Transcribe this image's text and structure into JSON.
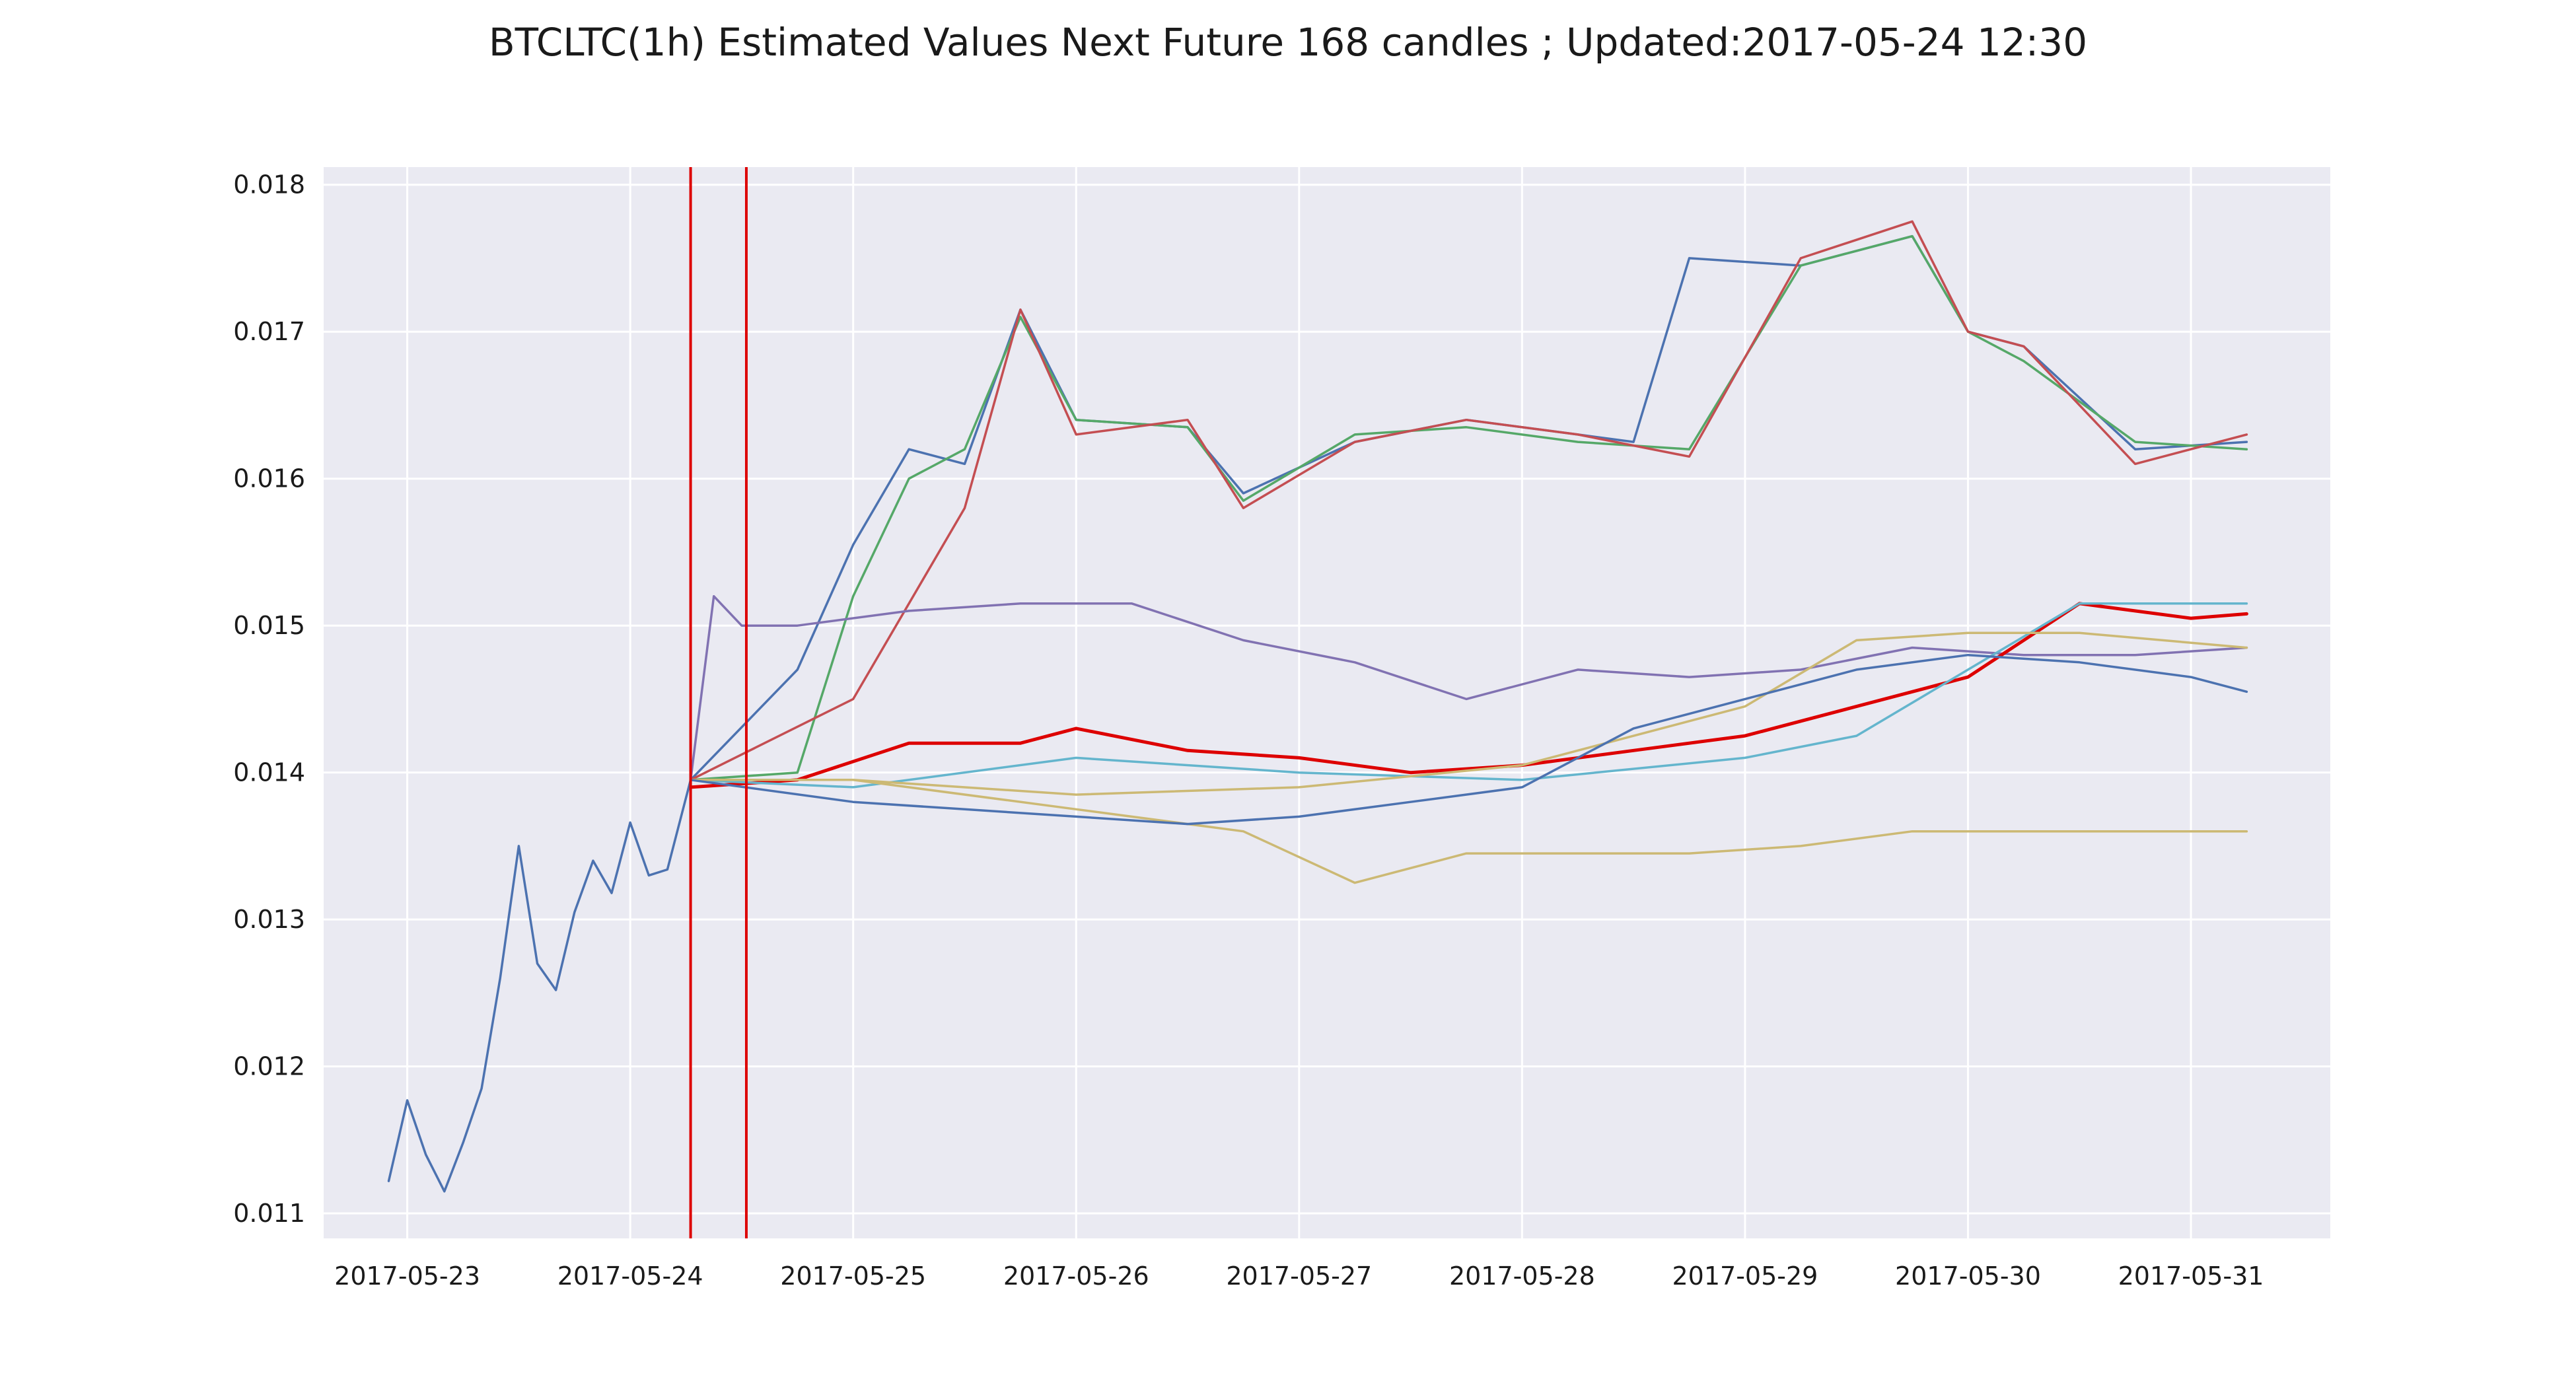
{
  "chart_data": {
    "type": "line",
    "title": "BTCLTC(1h) Estimated Values Next Future 168 candles ; Updated:2017-05-24 12:30",
    "xlabel": "",
    "ylabel": "",
    "x_unit": "date",
    "xlim": [
      "2017-05-22 15:00",
      "2017-05-31 15:00"
    ],
    "ylim": [
      0.01083,
      0.01812
    ],
    "x_ticks": [
      "2017-05-23",
      "2017-05-24",
      "2017-05-25",
      "2017-05-26",
      "2017-05-27",
      "2017-05-28",
      "2017-05-29",
      "2017-05-30",
      "2017-05-31"
    ],
    "y_ticks": [
      0.011,
      0.012,
      0.013,
      0.014,
      0.015,
      0.016,
      0.017,
      0.018
    ],
    "grid": true,
    "background": "#eaeaf2",
    "vertical_lines": [
      {
        "x": "2017-05-24 06:30",
        "color": "#dd0000"
      },
      {
        "x": "2017-05-24 12:30",
        "color": "#dd0000"
      }
    ],
    "history": {
      "color": "#4c72b0",
      "x": [
        "2017-05-22 22:00",
        "2017-05-23 00:00",
        "2017-05-23 02:00",
        "2017-05-23 04:00",
        "2017-05-23 06:00",
        "2017-05-23 08:00",
        "2017-05-23 10:00",
        "2017-05-23 12:00",
        "2017-05-23 14:00",
        "2017-05-23 16:00",
        "2017-05-23 18:00",
        "2017-05-23 20:00",
        "2017-05-23 22:00",
        "2017-05-24 00:00",
        "2017-05-24 02:00",
        "2017-05-24 04:00",
        "2017-05-24 06:30"
      ],
      "y": [
        0.01122,
        0.01177,
        0.0114,
        0.01115,
        0.01148,
        0.01185,
        0.0126,
        0.0135,
        0.0127,
        0.01252,
        0.01305,
        0.0134,
        0.01318,
        0.01366,
        0.0133,
        0.01334,
        0.01395
      ]
    },
    "series": [
      {
        "color": "#4c72b0",
        "x": [
          "2017-05-24 06:30",
          "2017-05-24 18:00",
          "2017-05-25 00:00",
          "2017-05-25 06:00",
          "2017-05-25 12:00",
          "2017-05-25 18:00",
          "2017-05-26 00:00",
          "2017-05-26 12:00",
          "2017-05-26 18:00",
          "2017-05-27 06:00",
          "2017-05-27 18:00",
          "2017-05-28 06:00",
          "2017-05-28 12:00",
          "2017-05-28 18:00",
          "2017-05-29 06:00",
          "2017-05-29 18:00",
          "2017-05-30 00:00",
          "2017-05-30 06:00",
          "2017-05-30 18:00",
          "2017-05-31 06:00"
        ],
        "y": [
          0.01395,
          0.0147,
          0.01555,
          0.0162,
          0.0161,
          0.01715,
          0.0164,
          0.01635,
          0.0159,
          0.01625,
          0.0164,
          0.0163,
          0.01625,
          0.0175,
          0.01745,
          0.01765,
          0.017,
          0.0169,
          0.0162,
          0.01625
        ]
      },
      {
        "color": "#55a868",
        "x": [
          "2017-05-24 06:30",
          "2017-05-24 18:00",
          "2017-05-25 00:00",
          "2017-05-25 06:00",
          "2017-05-25 12:00",
          "2017-05-25 18:00",
          "2017-05-26 00:00",
          "2017-05-26 12:00",
          "2017-05-26 18:00",
          "2017-05-27 06:00",
          "2017-05-27 18:00",
          "2017-05-28 06:00",
          "2017-05-28 18:00",
          "2017-05-29 06:00",
          "2017-05-29 18:00",
          "2017-05-30 00:00",
          "2017-05-30 06:00",
          "2017-05-30 18:00",
          "2017-05-31 06:00"
        ],
        "y": [
          0.01395,
          0.014,
          0.0152,
          0.016,
          0.0162,
          0.0171,
          0.0164,
          0.01635,
          0.01585,
          0.0163,
          0.01635,
          0.01625,
          0.0162,
          0.01745,
          0.01765,
          0.017,
          0.0168,
          0.01625,
          0.0162
        ]
      },
      {
        "color": "#c44e52",
        "x": [
          "2017-05-24 06:30",
          "2017-05-25 00:00",
          "2017-05-25 12:00",
          "2017-05-25 18:00",
          "2017-05-26 00:00",
          "2017-05-26 12:00",
          "2017-05-26 18:00",
          "2017-05-27 06:00",
          "2017-05-27 18:00",
          "2017-05-28 06:00",
          "2017-05-28 18:00",
          "2017-05-29 06:00",
          "2017-05-29 18:00",
          "2017-05-30 00:00",
          "2017-05-30 06:00",
          "2017-05-30 18:00",
          "2017-05-31 06:00"
        ],
        "y": [
          0.01395,
          0.0145,
          0.0158,
          0.01715,
          0.0163,
          0.0164,
          0.0158,
          0.01625,
          0.0164,
          0.0163,
          0.01615,
          0.0175,
          0.01775,
          0.017,
          0.0169,
          0.0161,
          0.0163
        ]
      },
      {
        "color": "#8172b2",
        "x": [
          "2017-05-24 06:30",
          "2017-05-24 09:00",
          "2017-05-24 12:00",
          "2017-05-24 18:00",
          "2017-05-25 06:00",
          "2017-05-25 18:00",
          "2017-05-26 06:00",
          "2017-05-26 18:00",
          "2017-05-27 06:00",
          "2017-05-27 18:00",
          "2017-05-28 06:00",
          "2017-05-28 18:00",
          "2017-05-29 06:00",
          "2017-05-29 18:00",
          "2017-05-30 06:00",
          "2017-05-30 18:00",
          "2017-05-31 06:00"
        ],
        "y": [
          0.01395,
          0.0152,
          0.015,
          0.015,
          0.0151,
          0.01515,
          0.01515,
          0.0149,
          0.01475,
          0.0145,
          0.0147,
          0.01465,
          0.0147,
          0.01485,
          0.0148,
          0.0148,
          0.01485
        ]
      },
      {
        "color": "#dd0000",
        "x": [
          "2017-05-24 06:30",
          "2017-05-24 18:00",
          "2017-05-25 06:00",
          "2017-05-25 18:00",
          "2017-05-26 00:00",
          "2017-05-26 12:00",
          "2017-05-27 00:00",
          "2017-05-27 12:00",
          "2017-05-28 00:00",
          "2017-05-28 12:00",
          "2017-05-29 00:00",
          "2017-05-29 12:00",
          "2017-05-30 00:00",
          "2017-05-30 12:00",
          "2017-05-31 00:00",
          "2017-05-31 06:00"
        ],
        "y": [
          0.0139,
          0.01395,
          0.0142,
          0.0142,
          0.0143,
          0.01415,
          0.0141,
          0.014,
          0.01405,
          0.01415,
          0.01425,
          0.01445,
          0.01465,
          0.01515,
          0.01505,
          0.01508
        ]
      },
      {
        "color": "#64b5cd",
        "x": [
          "2017-05-24 06:30",
          "2017-05-25 00:00",
          "2017-05-26 00:00",
          "2017-05-27 00:00",
          "2017-05-28 00:00",
          "2017-05-29 00:00",
          "2017-05-29 12:00",
          "2017-05-30 00:00",
          "2017-05-30 12:00",
          "2017-05-31 06:00"
        ],
        "y": [
          0.01395,
          0.0139,
          0.0141,
          0.014,
          0.01395,
          0.0141,
          0.01425,
          0.0147,
          0.01515,
          0.01515
        ]
      },
      {
        "color": "#ccb974",
        "x": [
          "2017-05-24 06:30",
          "2017-05-25 00:00",
          "2017-05-26 00:00",
          "2017-05-27 00:00",
          "2017-05-28 00:00",
          "2017-05-29 00:00",
          "2017-05-29 12:00",
          "2017-05-30 00:00",
          "2017-05-30 12:00",
          "2017-05-31 06:00"
        ],
        "y": [
          0.01395,
          0.01395,
          0.01385,
          0.0139,
          0.01405,
          0.01445,
          0.0149,
          0.01495,
          0.01495,
          0.01485
        ]
      },
      {
        "color": "#ccb974",
        "x": [
          "2017-05-24 06:30",
          "2017-05-25 00:00",
          "2017-05-26 00:00",
          "2017-05-26 18:00",
          "2017-05-27 06:00",
          "2017-05-27 18:00",
          "2017-05-28 06:00",
          "2017-05-28 18:00",
          "2017-05-29 06:00",
          "2017-05-29 18:00",
          "2017-05-30 06:00",
          "2017-05-30 18:00",
          "2017-05-31 06:00"
        ],
        "y": [
          0.01395,
          0.01395,
          0.01375,
          0.0136,
          0.01325,
          0.01345,
          0.01345,
          0.01345,
          0.0135,
          0.0136,
          0.0136,
          0.0136,
          0.0136
        ]
      },
      {
        "color": "#4c72b0",
        "x": [
          "2017-05-24 06:30",
          "2017-05-25 00:00",
          "2017-05-25 12:00",
          "2017-05-26 00:00",
          "2017-05-26 12:00",
          "2017-05-27 00:00",
          "2017-05-27 12:00",
          "2017-05-28 00:00",
          "2017-05-28 12:00",
          "2017-05-29 00:00",
          "2017-05-29 12:00",
          "2017-05-30 00:00",
          "2017-05-30 12:00",
          "2017-05-31 00:00",
          "2017-05-31 06:00"
        ],
        "y": [
          0.01395,
          0.0138,
          0.01375,
          0.0137,
          0.01365,
          0.0137,
          0.0138,
          0.0139,
          0.0143,
          0.0145,
          0.0147,
          0.0148,
          0.01475,
          0.01465,
          0.01455
        ]
      }
    ]
  }
}
